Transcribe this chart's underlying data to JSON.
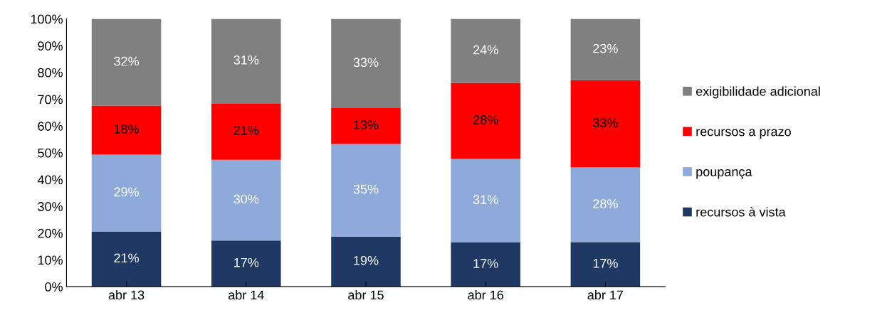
{
  "chart_data": {
    "type": "bar",
    "stacked": true,
    "categories": [
      "abr 13",
      "abr 14",
      "abr 15",
      "abr 16",
      "abr 17"
    ],
    "series": [
      {
        "name": "recursos à vista",
        "color": "#1f3864",
        "values": [
          20.6,
          17.2,
          18.7,
          16.5,
          16.6
        ],
        "value_labels": [
          "21%",
          "17%",
          "19%",
          "17%",
          "17%"
        ]
      },
      {
        "name": "poupança",
        "color": "#8eaadb",
        "values": [
          28.7,
          30.2,
          34.6,
          31.2,
          27.9
        ],
        "value_labels": [
          "29%",
          "30%",
          "35%",
          "31%",
          "28%"
        ]
      },
      {
        "name": "recursos a prazo",
        "color": "#ff0000",
        "values": [
          18.3,
          21.1,
          13.4,
          28.4,
          32.6
        ],
        "value_labels": [
          "18%",
          "21%",
          "13%",
          "28%",
          "33%"
        ]
      },
      {
        "name": "exigibilidade adicional",
        "color": "#808080",
        "values": [
          32.4,
          31.5,
          33.3,
          23.9,
          22.9
        ],
        "value_labels": [
          "32%",
          "31%",
          "33%",
          "24%",
          "23%"
        ]
      }
    ],
    "ylim": [
      0,
      100
    ],
    "yticks": [
      {
        "value": 0,
        "label": "0%"
      },
      {
        "value": 10,
        "label": "10%"
      },
      {
        "value": 20,
        "label": "20%"
      },
      {
        "value": 30,
        "label": "30%"
      },
      {
        "value": 40,
        "label": "40%"
      },
      {
        "value": 50,
        "label": "50%"
      },
      {
        "value": 60,
        "label": "60%"
      },
      {
        "value": 70,
        "label": "70%"
      },
      {
        "value": 80,
        "label": "80%"
      },
      {
        "value": 90,
        "label": "90%"
      },
      {
        "value": 100,
        "label": "100%"
      }
    ],
    "grid": false,
    "legend": "right"
  }
}
